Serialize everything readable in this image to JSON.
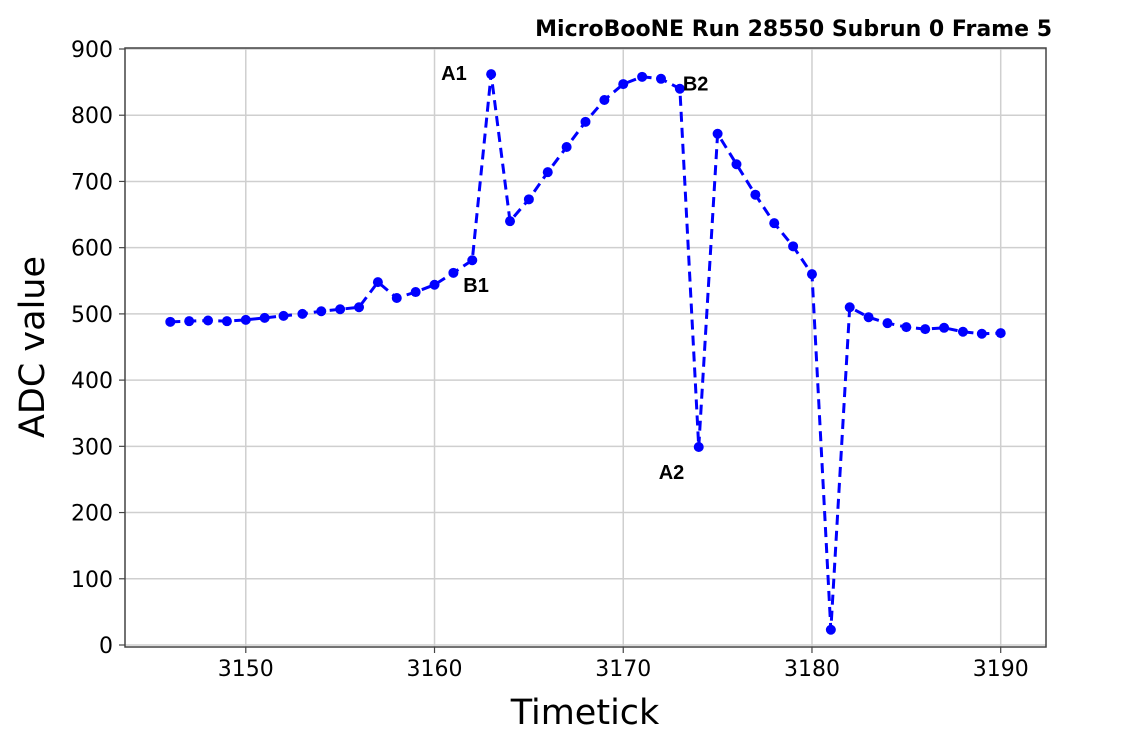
{
  "chart_data": {
    "type": "line",
    "title": "MicroBooNE Run 28550 Subrun 0 Frame 5",
    "xlabel": "Timetick",
    "ylabel": "ADC value",
    "xlim": [
      3143.6,
      3192.4
    ],
    "ylim": [
      0,
      900
    ],
    "xticks": [
      3150,
      3160,
      3170,
      3180,
      3190
    ],
    "yticks": [
      0,
      100,
      200,
      300,
      400,
      500,
      600,
      700,
      800,
      900
    ],
    "grid": true,
    "line_color": "#0000ff",
    "line_style": "dashed",
    "marker": "circle",
    "x": [
      3146,
      3147,
      3148,
      3149,
      3150,
      3151,
      3152,
      3153,
      3154,
      3155,
      3156,
      3157,
      3158,
      3159,
      3160,
      3161,
      3162,
      3163,
      3164,
      3165,
      3166,
      3167,
      3168,
      3169,
      3170,
      3171,
      3172,
      3173,
      3174,
      3175,
      3176,
      3177,
      3178,
      3179,
      3180,
      3181,
      3182,
      3183,
      3184,
      3185,
      3186,
      3187,
      3188,
      3189,
      3190
    ],
    "y": [
      488,
      489,
      490,
      489,
      491,
      494,
      497,
      500,
      504,
      507,
      510,
      548,
      524,
      533,
      544,
      562,
      581,
      862,
      640,
      673,
      714,
      752,
      790,
      823,
      847,
      858,
      855,
      840,
      299,
      772,
      726,
      680,
      637,
      602,
      560,
      23,
      510,
      495,
      486,
      480,
      477,
      479,
      473,
      470,
      471
    ],
    "annotations": [
      {
        "text": "A1",
        "x": 3163,
        "y": 862,
        "anchor": "left"
      },
      {
        "text": "B1",
        "x": 3162,
        "y": 581,
        "anchor": "below"
      },
      {
        "text": "B2",
        "x": 3173,
        "y": 840,
        "anchor": "right"
      },
      {
        "text": "A2",
        "x": 3174,
        "y": 299,
        "anchor": "below-left"
      }
    ]
  }
}
